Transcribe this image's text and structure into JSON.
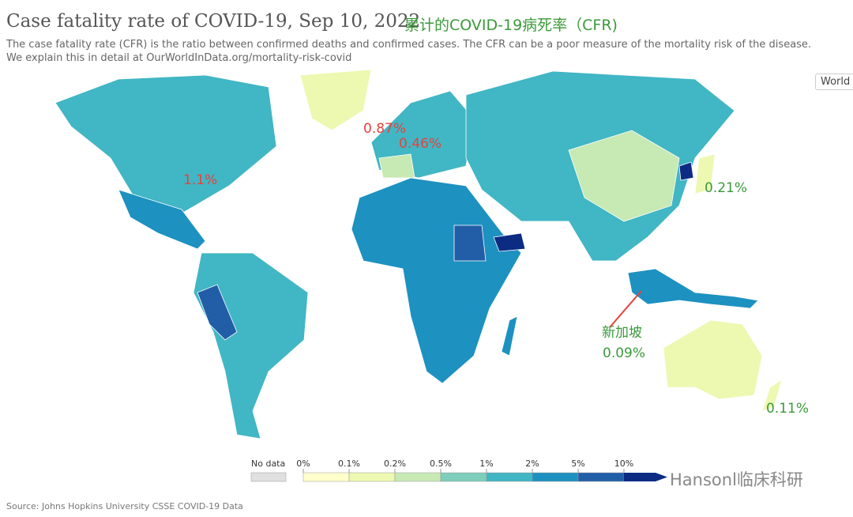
{
  "header": {
    "title": "Case fatality rate of COVID-19, Sep 10, 2022",
    "note": "累计的COVID-19病死率（CFR)",
    "subtitle": "The case fatality rate (CFR) is the ratio between confirmed deaths and confirmed cases. The CFR can be a poor measure of the mortality risk of the disease. We explain this in detail at OurWorldInData.org/mortality-risk-covid",
    "button": "World"
  },
  "annotations": [
    {
      "text": "0.87%",
      "color": "#e8413c"
    },
    {
      "text": "0.46%",
      "color": "#e8413c"
    },
    {
      "text": "1.1%",
      "color": "#e8413c"
    },
    {
      "text": "0.21%",
      "color": "#3a9a3a"
    },
    {
      "text": "新加坡",
      "color": "#3a9a3a"
    },
    {
      "text": "0.09%",
      "color": "#3a9a3a"
    },
    {
      "text": "0.11%",
      "color": "#3a9a3a"
    }
  ],
  "legend": {
    "no_data": "No data",
    "labels": [
      "0%",
      "0.1%",
      "0.2%",
      "0.5%",
      "1%",
      "2%",
      "5%",
      "10%"
    ],
    "colors": [
      "#ffffcc",
      "#edf8b1",
      "#c7e9b4",
      "#7fcdbb",
      "#41b6c4",
      "#1d91c0",
      "#225ea8",
      "#0c2c84"
    ]
  },
  "source": "Source: Johns Hopkins University CSSE COVID-19 Data",
  "watermark": "Hansonl临床科研"
}
